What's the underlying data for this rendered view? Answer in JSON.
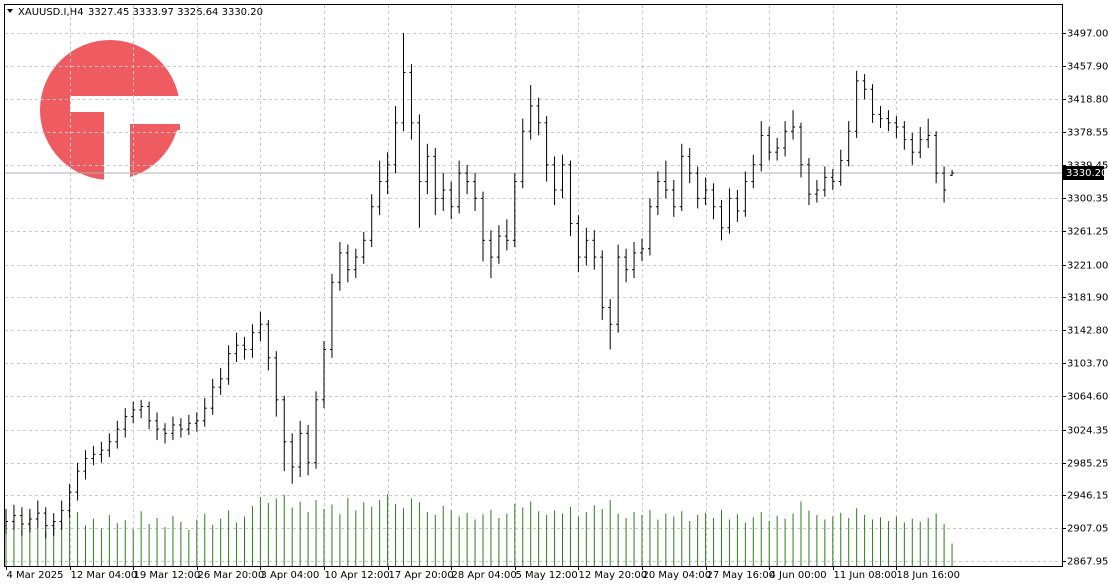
{
  "chart_data": {
    "type": "ohlc",
    "header": {
      "symbol": "XAUUSD.I,H4",
      "quote": "3327.45 3333.97 3326.64 3330.20"
    },
    "categories": [
      "4 Mar 2025",
      null,
      null,
      null,
      null,
      null,
      null,
      null,
      "12 Mar 04:00",
      null,
      null,
      null,
      null,
      null,
      null,
      null,
      "19 Mar 12:00",
      null,
      null,
      null,
      null,
      null,
      null,
      null,
      "26 Mar 20:00",
      null,
      null,
      null,
      null,
      null,
      null,
      null,
      "3 Apr 04:00",
      null,
      null,
      null,
      null,
      null,
      null,
      null,
      "10 Apr 12:00",
      null,
      null,
      null,
      null,
      null,
      null,
      null,
      "17 Apr 20:00",
      null,
      null,
      null,
      null,
      null,
      null,
      null,
      "28 Apr 04:00",
      null,
      null,
      null,
      null,
      null,
      null,
      null,
      "5 May 12:00",
      null,
      null,
      null,
      null,
      null,
      null,
      null,
      "12 May 20:00",
      null,
      null,
      null,
      null,
      null,
      null,
      null,
      "20 May 04:00",
      null,
      null,
      null,
      null,
      null,
      null,
      null,
      "27 May 16:00",
      null,
      null,
      null,
      null,
      null,
      null,
      null,
      "4 Jun 00:00",
      null,
      null,
      null,
      null,
      null,
      null,
      null,
      "11 Jun 08:00",
      null,
      null,
      null,
      null,
      null,
      null,
      null,
      "18 Jun 16:00",
      null,
      null,
      null,
      null,
      null,
      null,
      null
    ],
    "open": [
      2910,
      2915,
      2922,
      2912,
      2918,
      2925,
      2910,
      2915,
      2928,
      2950,
      2975,
      2990,
      2995,
      3000,
      3010,
      3025,
      3040,
      3048,
      3052,
      3035,
      3025,
      3020,
      3030,
      3025,
      3032,
      3035,
      3050,
      3075,
      3085,
      3115,
      3125,
      3120,
      3140,
      3150,
      3110,
      3060,
      3010,
      2980,
      3020,
      2985,
      3060,
      3120,
      3200,
      3235,
      3215,
      3230,
      3250,
      3290,
      3320,
      3340,
      3390,
      3450,
      3390,
      3320,
      3350,
      3300,
      3310,
      3290,
      3330,
      3320,
      3300,
      3250,
      3230,
      3255,
      3250,
      3320,
      3380,
      3410,
      3390,
      3340,
      3310,
      3340,
      3270,
      3230,
      3250,
      3230,
      3170,
      3150,
      3230,
      3215,
      3235,
      3240,
      3290,
      3320,
      3310,
      3290,
      3350,
      3330,
      3300,
      3310,
      3290,
      3265,
      3300,
      3285,
      3320,
      3340,
      3375,
      3355,
      3360,
      3380,
      3385,
      3340,
      3305,
      3310,
      3325,
      3320,
      3345,
      3380,
      3440,
      3430,
      3400,
      3395,
      3390,
      3385,
      3370,
      3355,
      3370,
      3375,
      3330,
      3327.45
    ],
    "high": [
      2930,
      2935,
      2932,
      2930,
      2940,
      2932,
      2925,
      2940,
      2960,
      2985,
      3000,
      3005,
      3010,
      3020,
      3035,
      3050,
      3058,
      3060,
      3058,
      3045,
      3032,
      3040,
      3038,
      3042,
      3045,
      3062,
      3085,
      3098,
      3125,
      3140,
      3135,
      3150,
      3165,
      3155,
      3118,
      3065,
      3020,
      3035,
      3030,
      3070,
      3130,
      3210,
      3248,
      3245,
      3240,
      3260,
      3305,
      3345,
      3355,
      3410,
      3497,
      3460,
      3400,
      3365,
      3360,
      3330,
      3320,
      3345,
      3340,
      3330,
      3308,
      3262,
      3268,
      3275,
      3330,
      3395,
      3435,
      3420,
      3398,
      3350,
      3352,
      3345,
      3280,
      3265,
      3262,
      3238,
      3180,
      3245,
      3240,
      3248,
      3252,
      3300,
      3332,
      3345,
      3322,
      3365,
      3360,
      3338,
      3325,
      3318,
      3298,
      3312,
      3310,
      3332,
      3352,
      3392,
      3385,
      3372,
      3392,
      3405,
      3390,
      3348,
      3322,
      3338,
      3335,
      3358,
      3392,
      3452,
      3448,
      3436,
      3410,
      3405,
      3398,
      3392,
      3378,
      3385,
      3395,
      3380,
      3338,
      3333.97
    ],
    "low": [
      2900,
      2905,
      2898,
      2902,
      2908,
      2895,
      2898,
      2905,
      2920,
      2940,
      2965,
      2982,
      2985,
      2992,
      3002,
      3015,
      3032,
      3038,
      3025,
      3012,
      3008,
      3012,
      3015,
      3018,
      3022,
      3028,
      3042,
      3066,
      3078,
      3105,
      3108,
      3110,
      3130,
      3095,
      3040,
      2975,
      2960,
      2968,
      2970,
      2978,
      3050,
      3110,
      3190,
      3200,
      3205,
      3222,
      3242,
      3280,
      3305,
      3330,
      3380,
      3370,
      3265,
      3305,
      3280,
      3285,
      3275,
      3282,
      3305,
      3285,
      3225,
      3205,
      3222,
      3238,
      3242,
      3312,
      3370,
      3375,
      3320,
      3292,
      3300,
      3255,
      3212,
      3220,
      3215,
      3155,
      3120,
      3140,
      3200,
      3205,
      3225,
      3232,
      3280,
      3300,
      3278,
      3285,
      3318,
      3288,
      3292,
      3275,
      3250,
      3258,
      3272,
      3278,
      3312,
      3332,
      3345,
      3345,
      3350,
      3370,
      3325,
      3292,
      3295,
      3302,
      3310,
      3315,
      3338,
      3372,
      3418,
      3390,
      3384,
      3380,
      3372,
      3358,
      3340,
      3348,
      3360,
      3318,
      3295,
      3326.64
    ],
    "close": [
      2915,
      2922,
      2912,
      2918,
      2925,
      2910,
      2915,
      2928,
      2950,
      2975,
      2990,
      2995,
      3000,
      3010,
      3025,
      3040,
      3048,
      3052,
      3035,
      3025,
      3020,
      3030,
      3025,
      3032,
      3035,
      3050,
      3075,
      3085,
      3115,
      3125,
      3120,
      3140,
      3150,
      3110,
      3060,
      3010,
      2980,
      3020,
      2985,
      3060,
      3120,
      3200,
      3235,
      3215,
      3230,
      3250,
      3290,
      3320,
      3340,
      3390,
      3450,
      3390,
      3320,
      3350,
      3300,
      3310,
      3290,
      3330,
      3320,
      3300,
      3250,
      3230,
      3255,
      3250,
      3320,
      3380,
      3410,
      3390,
      3340,
      3310,
      3340,
      3270,
      3230,
      3250,
      3230,
      3170,
      3150,
      3230,
      3215,
      3235,
      3240,
      3290,
      3320,
      3310,
      3290,
      3350,
      3330,
      3300,
      3310,
      3290,
      3265,
      3300,
      3285,
      3320,
      3340,
      3375,
      3355,
      3360,
      3380,
      3385,
      3340,
      3305,
      3310,
      3325,
      3320,
      3345,
      3380,
      3440,
      3430,
      3400,
      3395,
      3390,
      3385,
      3370,
      3355,
      3370,
      3375,
      3330,
      3310,
      3330.2
    ],
    "volume": [
      55,
      62,
      48,
      70,
      52,
      45,
      60,
      58,
      66,
      72,
      54,
      63,
      50,
      68,
      57,
      61,
      49,
      73,
      56,
      64,
      52,
      67,
      59,
      48,
      62,
      70,
      55,
      63,
      74,
      58,
      66,
      80,
      92,
      84,
      90,
      95,
      78,
      86,
      72,
      88,
      76,
      82,
      69,
      91,
      74,
      85,
      79,
      88,
      96,
      83,
      77,
      90,
      85,
      72,
      68,
      80,
      74,
      66,
      71,
      62,
      69,
      75,
      64,
      70,
      83,
      78,
      86,
      73,
      68,
      74,
      70,
      79,
      66,
      72,
      81,
      76,
      88,
      70,
      64,
      72,
      68,
      75,
      62,
      70,
      66,
      73,
      60,
      68,
      71,
      64,
      75,
      62,
      69,
      58,
      65,
      72,
      60,
      67,
      63,
      70,
      86,
      74,
      68,
      62,
      66,
      71,
      64,
      77,
      68,
      62,
      65,
      60,
      66,
      58,
      63,
      59,
      64,
      70,
      56,
      30
    ],
    "volume_color": "#2f7d1f",
    "bar_color": "#000000",
    "current_price": {
      "value": 3330.2,
      "label": "3330.20"
    },
    "ylim": [
      2861.99,
      3530.36
    ],
    "yticks": [
      {
        "value": 3497,
        "label": "3497.00"
      },
      {
        "value": 3457.9,
        "label": "3457.90"
      },
      {
        "value": 3418.8,
        "label": "3418.80"
      },
      {
        "value": 3378.55,
        "label": "3378.55"
      },
      {
        "value": 3339.45,
        "label": "3339.45"
      },
      {
        "value": 3300.35,
        "label": "3300.35"
      },
      {
        "value": 3261.25,
        "label": "3261.25"
      },
      {
        "value": 3221,
        "label": "3221.00"
      },
      {
        "value": 3181.9,
        "label": "3181.90"
      },
      {
        "value": 3142.8,
        "label": "3142.80"
      },
      {
        "value": 3103.7,
        "label": "3103.70"
      },
      {
        "value": 3064.6,
        "label": "3064.60"
      },
      {
        "value": 3024.35,
        "label": "3024.35"
      },
      {
        "value": 2985.25,
        "label": "2985.25"
      },
      {
        "value": 2946.15,
        "label": "2946.15"
      },
      {
        "value": 2907.05,
        "label": "2907.05"
      },
      {
        "value": 2867.95,
        "label": "2867.95"
      }
    ],
    "grid": true
  }
}
